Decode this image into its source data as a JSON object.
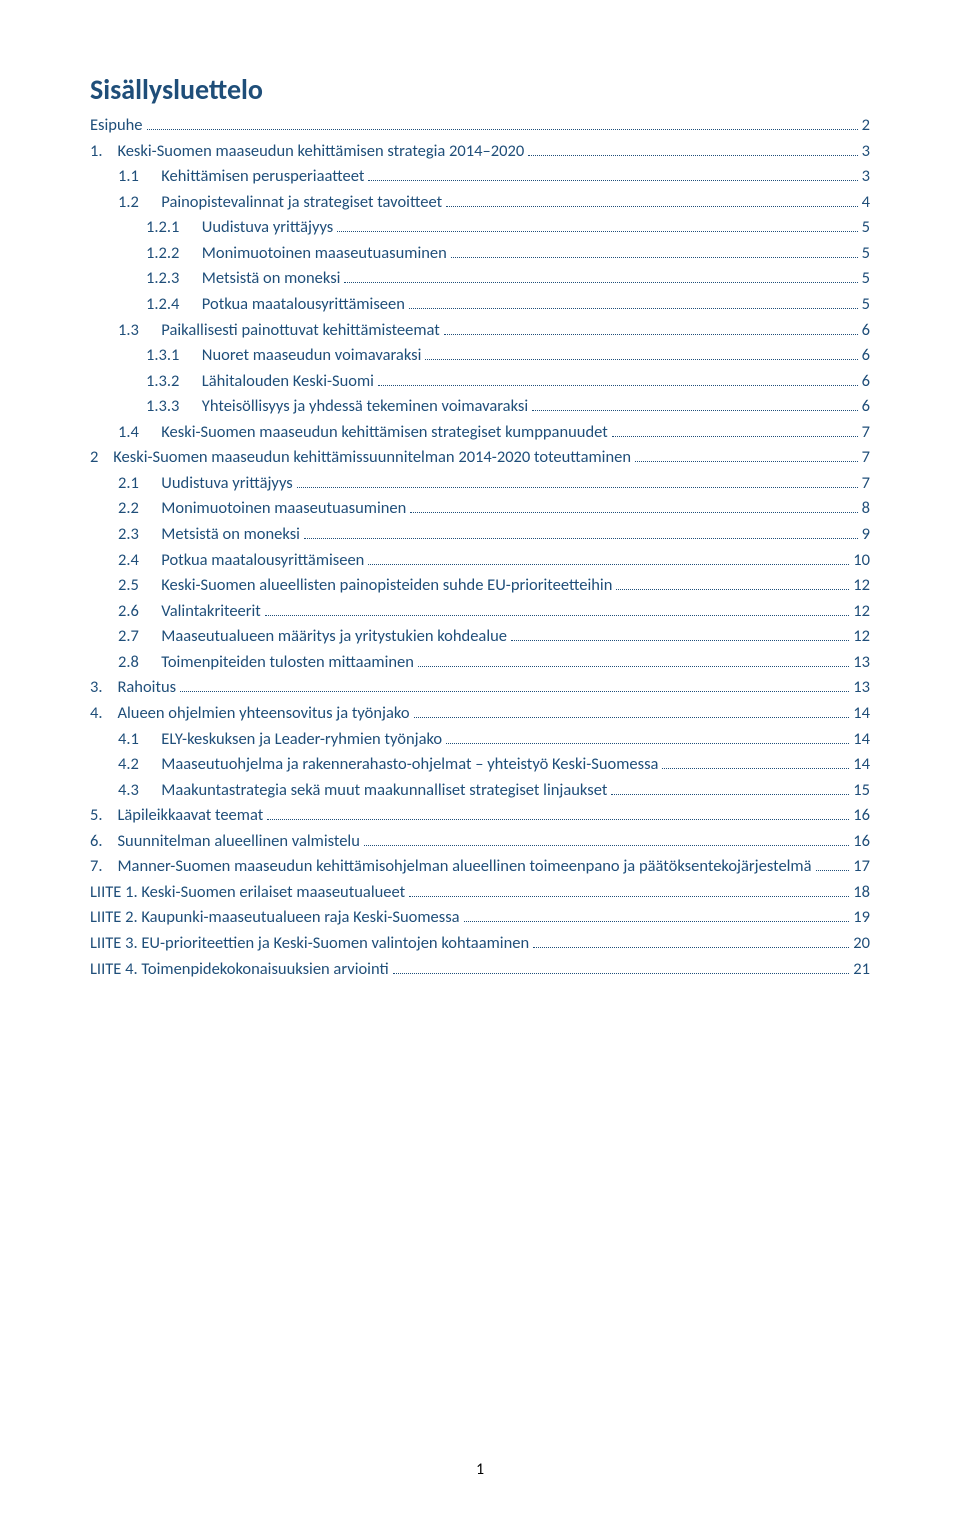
{
  "title": "Sisällysluettelo",
  "page_number": "1",
  "colors": {
    "heading": "#1f4e79",
    "text": "#1f4e79",
    "leaders": "#1f4e79",
    "background": "#ffffff"
  },
  "fonts": {
    "title_size_pt": 21,
    "body_size_pt": 12
  },
  "toc": [
    {
      "level": 0,
      "label": "Esipuhe",
      "page": "2"
    },
    {
      "level": 1,
      "label": "1.    Keski-Suomen maaseudun kehittämisen strategia 2014–2020",
      "page": "3"
    },
    {
      "level": 2,
      "label": "1.1      Kehittämisen perusperiaatteet",
      "page": "3"
    },
    {
      "level": 2,
      "label": "1.2      Painopistevalinnat ja strategiset tavoitteet",
      "page": "4"
    },
    {
      "level": 3,
      "label": "1.2.1      Uudistuva yrittäjyys",
      "page": "5"
    },
    {
      "level": 3,
      "label": "1.2.2      Monimuotoinen maaseutuasuminen",
      "page": "5"
    },
    {
      "level": 3,
      "label": "1.2.3      Metsistä on moneksi",
      "page": "5"
    },
    {
      "level": 3,
      "label": "1.2.4      Potkua maatalousyrittämiseen",
      "page": "5"
    },
    {
      "level": 2,
      "label": "1.3      Paikallisesti painottuvat kehittämisteemat",
      "page": "6"
    },
    {
      "level": 3,
      "label": "1.3.1      Nuoret maaseudun voimavaraksi",
      "page": "6"
    },
    {
      "level": 3,
      "label": "1.3.2      Lähitalouden Keski-Suomi",
      "page": "6"
    },
    {
      "level": 3,
      "label": "1.3.3      Yhteisöllisyys ja yhdessä tekeminen voimavaraksi",
      "page": "6"
    },
    {
      "level": 2,
      "label": "1.4      Keski-Suomen maaseudun kehittämisen strategiset kumppanuudet",
      "page": "7"
    },
    {
      "level": 1,
      "label": "2    Keski-Suomen maaseudun kehittämissuunnitelman 2014-2020 toteuttaminen",
      "page": "7"
    },
    {
      "level": 2,
      "label": "2.1      Uudistuva yrittäjyys",
      "page": "7"
    },
    {
      "level": 2,
      "label": "2.2      Monimuotoinen maaseutuasuminen",
      "page": "8"
    },
    {
      "level": 2,
      "label": "2.3      Metsistä on moneksi",
      "page": "9"
    },
    {
      "level": 2,
      "label": "2.4      Potkua maatalousyrittämiseen",
      "page": "10"
    },
    {
      "level": 2,
      "label": "2.5      Keski-Suomen alueellisten painopisteiden suhde EU-prioriteetteihin",
      "page": "12"
    },
    {
      "level": 2,
      "label": "2.6      Valintakriteerit",
      "page": "12"
    },
    {
      "level": 2,
      "label": "2.7      Maaseutualueen määritys ja yritystukien kohdealue",
      "page": "12"
    },
    {
      "level": 2,
      "label": "2.8      Toimenpiteiden tulosten mittaaminen",
      "page": "13"
    },
    {
      "level": 1,
      "label": "3.    Rahoitus",
      "page": "13"
    },
    {
      "level": 1,
      "label": "4.    Alueen ohjelmien yhteensovitus ja työnjako",
      "page": "14"
    },
    {
      "level": 2,
      "label": "4.1      ELY-keskuksen ja Leader-ryhmien työnjako",
      "page": "14"
    },
    {
      "level": 2,
      "label": "4.2      Maaseutuohjelma ja rakennerahasto-ohjelmat – yhteistyö Keski-Suomessa",
      "page": "14"
    },
    {
      "level": 2,
      "label": "4.3      Maakuntastrategia sekä muut maakunnalliset strategiset linjaukset",
      "page": "15"
    },
    {
      "level": 1,
      "label": "5.    Läpileikkaavat teemat",
      "page": "16"
    },
    {
      "level": 1,
      "label": "6.    Suunnitelman alueellinen valmistelu",
      "page": "16"
    },
    {
      "level": 1,
      "label": "7.    Manner-Suomen maaseudun kehittämisohjelman alueellinen toimeenpano ja päätöksentekojärjestelmä",
      "page": "17"
    },
    {
      "level": 0,
      "label": "LIITE 1. Keski-Suomen erilaiset maaseutualueet",
      "page": "18"
    },
    {
      "level": 0,
      "label": "LIITE 2. Kaupunki-maaseutualueen raja Keski-Suomessa",
      "page": "19"
    },
    {
      "level": 0,
      "label": "LIITE 3. EU-prioriteettien ja Keski-Suomen valintojen kohtaaminen",
      "page": "20"
    },
    {
      "level": 0,
      "label": "LIITE 4. Toimenpidekokonaisuuksien arviointi",
      "page": "21"
    }
  ]
}
